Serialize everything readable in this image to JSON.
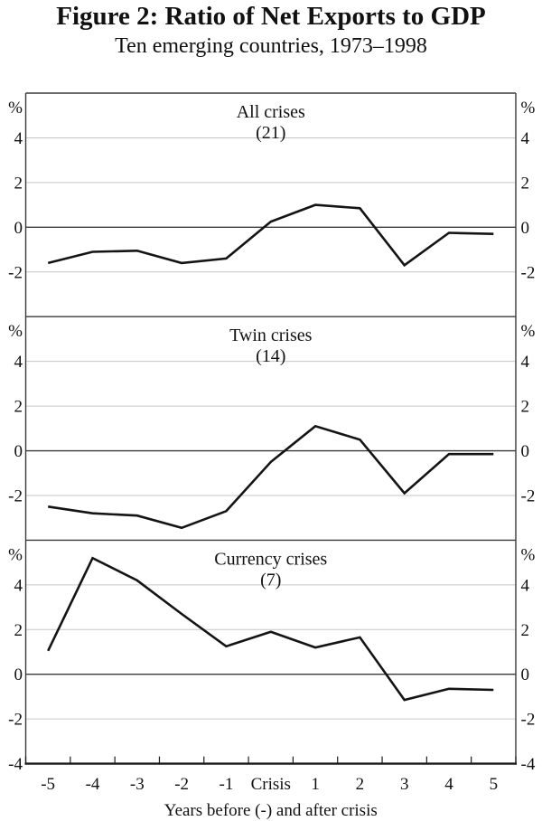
{
  "figure": {
    "title": "Figure 2: Ratio of Net Exports to GDP",
    "subtitle": "Ten emerging countries, 1973–1998"
  },
  "axis": {
    "unit_label": "%",
    "x_axis_title": "Years before (-) and after crisis",
    "x_tick_labels": [
      "-5",
      "-4",
      "-3",
      "-2",
      "-1",
      "Crisis",
      "1",
      "2",
      "3",
      "4",
      "5"
    ],
    "y_ticks": [
      4,
      2,
      0,
      -2
    ],
    "y_bottom_label": "-4",
    "ylim": [
      -4,
      6
    ],
    "grid": "horizontal-only",
    "legend": "none"
  },
  "chart_data": [
    {
      "type": "line",
      "title": "All crises",
      "count_label": "(21)",
      "x": [
        -5,
        -4,
        -3,
        -2,
        -1,
        0,
        1,
        2,
        3,
        4,
        5
      ],
      "categories": [
        "-5",
        "-4",
        "-3",
        "-2",
        "-1",
        "Crisis",
        "1",
        "2",
        "3",
        "4",
        "5"
      ],
      "values": [
        -1.6,
        -1.1,
        -1.05,
        -1.6,
        -1.4,
        0.25,
        1.0,
        0.85,
        -1.7,
        -0.25,
        -0.3
      ],
      "ylabel": "%",
      "ylim": [
        -4,
        6
      ]
    },
    {
      "type": "line",
      "title": "Twin crises",
      "count_label": "(14)",
      "x": [
        -5,
        -4,
        -3,
        -2,
        -1,
        0,
        1,
        2,
        3,
        4,
        5
      ],
      "categories": [
        "-5",
        "-4",
        "-3",
        "-2",
        "-1",
        "Crisis",
        "1",
        "2",
        "3",
        "4",
        "5"
      ],
      "values": [
        -2.5,
        -2.8,
        -2.9,
        -3.45,
        -2.7,
        -0.5,
        1.1,
        0.5,
        -1.9,
        -0.15,
        -0.15
      ],
      "ylabel": "%",
      "ylim": [
        -4,
        6
      ]
    },
    {
      "type": "line",
      "title": "Currency crises",
      "count_label": "(7)",
      "x": [
        -5,
        -4,
        -3,
        -2,
        -1,
        0,
        1,
        2,
        3,
        4,
        5
      ],
      "categories": [
        "-5",
        "-4",
        "-3",
        "-2",
        "-1",
        "Crisis",
        "1",
        "2",
        "3",
        "4",
        "5"
      ],
      "values": [
        1.05,
        5.2,
        4.2,
        2.7,
        1.25,
        1.9,
        1.2,
        1.65,
        -1.15,
        -0.65,
        -0.7
      ],
      "ylabel": "%",
      "ylim": [
        -4,
        6
      ]
    }
  ],
  "colors": {
    "series_line": "#141414",
    "gridline": "#c6c6c6",
    "frame": "#3a3a3a",
    "bottom_axis": "#1b1b1b",
    "text": "#111111",
    "background": "#ffffff"
  }
}
